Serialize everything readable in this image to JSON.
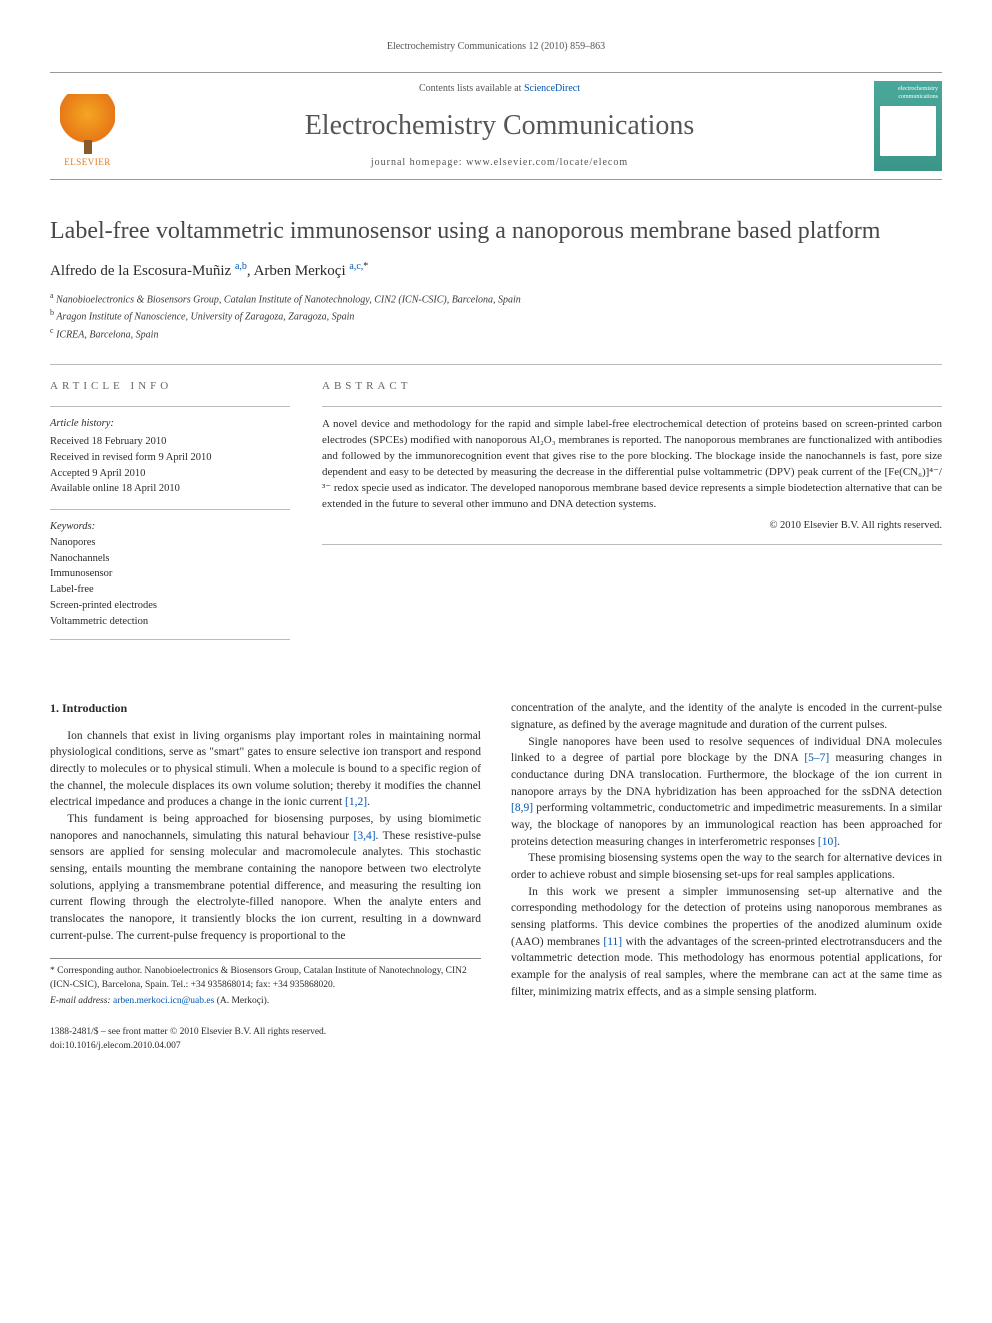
{
  "running_head": "Electrochemistry Communications 12 (2010) 859–863",
  "banner": {
    "contents_prefix": "Contents lists available at ",
    "contents_link": "ScienceDirect",
    "journal": "Electrochemistry Communications",
    "homepage_label": "journal homepage: ",
    "homepage": "www.elsevier.com/locate/elecom",
    "publisher": "ELSEVIER",
    "cover_label": "electrochemistry communications"
  },
  "title": "Label-free voltammetric immunosensor using a nanoporous membrane based platform",
  "authors": [
    {
      "name": "Alfredo de la Escosura-Muñiz",
      "marks": "a,b"
    },
    {
      "name": "Arben Merkoçi",
      "marks": "a,c,",
      "corr": true
    }
  ],
  "affiliations": [
    {
      "mark": "a",
      "text": "Nanobioelectronics & Biosensors Group, Catalan Institute of Nanotechnology, CIN2 (ICN-CSIC), Barcelona, Spain"
    },
    {
      "mark": "b",
      "text": "Aragon Institute of Nanoscience, University of Zaragoza, Zaragoza, Spain"
    },
    {
      "mark": "c",
      "text": "ICREA, Barcelona, Spain"
    }
  ],
  "info": {
    "label": "article info",
    "history_head": "Article history:",
    "history": [
      "Received 18 February 2010",
      "Received in revised form 9 April 2010",
      "Accepted 9 April 2010",
      "Available online 18 April 2010"
    ],
    "keywords_head": "Keywords:",
    "keywords": [
      "Nanopores",
      "Nanochannels",
      "Immunosensor",
      "Label-free",
      "Screen-printed electrodes",
      "Voltammetric detection"
    ]
  },
  "abstract": {
    "label": "abstract",
    "text": "A novel device and methodology for the rapid and simple label-free electrochemical detection of proteins based on screen-printed carbon electrodes (SPCEs) modified with nanoporous Al₂O₃ membranes is reported. The nanoporous membranes are functionalized with antibodies and followed by the immunorecognition event that gives rise to the pore blocking. The blockage inside the nanochannels is fast, pore size dependent and easy to be detected by measuring the decrease in the differential pulse voltammetric (DPV) peak current of the [Fe(CN₆)]⁴⁻/³⁻ redox specie used as indicator. The developed nanoporous membrane based device represents a simple biodetection alternative that can be extended in the future to several other immuno and DNA detection systems.",
    "copyright": "© 2010 Elsevier B.V. All rights reserved."
  },
  "body": {
    "heading": "1. Introduction",
    "p1": "Ion channels that exist in living organisms play important roles in maintaining normal physiological conditions, serve as \"smart\" gates to ensure selective ion transport and respond directly to molecules or to physical stimuli. When a molecule is bound to a specific region of the channel, the molecule displaces its own volume solution; thereby it modifies the channel electrical impedance and produces a change in the ionic current ",
    "ref1": "[1,2]",
    "p2a": "This fundament is being approached for biosensing purposes, by using biomimetic nanopores and nanochannels, simulating this natural behaviour ",
    "ref2": "[3,4]",
    "p2b": ". These resistive-pulse sensors are applied for sensing molecular and macromolecule analytes. This stochastic sensing, entails mounting the membrane containing the nanopore between two electrolyte solutions, applying a transmembrane potential difference, and measuring the resulting ion current flowing through the electrolyte-filled nanopore. When the analyte enters and translocates the nanopore, it transiently blocks the ion current, resulting in a downward current-pulse. The current-pulse frequency is proportional to the",
    "p3": "concentration of the analyte, and the identity of the analyte is encoded in the current-pulse signature, as defined by the average magnitude and duration of the current pulses.",
    "p4a": "Single nanopores have been used to resolve sequences of individual DNA molecules linked to a degree of partial pore blockage by the DNA ",
    "ref3": "[5–7]",
    "p4b": " measuring changes in conductance during DNA translocation. Furthermore, the blockage of the ion current in nanopore arrays by the DNA hybridization has been approached for the ssDNA detection ",
    "ref4": "[8,9]",
    "p4c": " performing voltammetric, conductometric and impedimetric measurements. In a similar way, the blockage of nanopores by an immunological reaction has been approached for proteins detection measuring changes in interferometric responses ",
    "ref5": "[10]",
    "p5": "These promising biosensing systems open the way to the search for alternative devices in order to achieve robust and simple biosensing set-ups for real samples applications.",
    "p6a": "In this work we present a simpler immunosensing set-up alternative and the corresponding methodology for the detection of proteins using nanoporous membranes as sensing platforms. This device combines the properties of the anodized aluminum oxide (AAO) membranes ",
    "ref6": "[11]",
    "p6b": " with the advantages of the screen-printed electrotransducers and the voltammetric detection mode. This methodology has enormous potential applications, for example for the analysis of real samples, where the membrane can act at the same time as filter, minimizing matrix effects, and as a simple sensing platform."
  },
  "footnotes": {
    "corr": "* Corresponding author. Nanobioelectronics & Biosensors Group, Catalan Institute of Nanotechnology, CIN2 (ICN-CSIC), Barcelona, Spain. Tel.: +34 935868014; fax: +34 935868020.",
    "email_label": "E-mail address: ",
    "email": "arben.merkoci.icn@uab.es",
    "email_who": " (A. Merkoçi)."
  },
  "bottom": {
    "line1": "1388-2481/$ – see front matter © 2010 Elsevier B.V. All rights reserved.",
    "line2": "doi:10.1016/j.elecom.2010.04.007"
  },
  "colors": {
    "link": "#0056b3",
    "logo": "#e67817",
    "cover": "#4aa89a",
    "rule": "#bbbbbb",
    "text": "#2a2a2a"
  },
  "typography": {
    "title_pt": 24,
    "journal_pt": 28,
    "body_pt": 11.5,
    "abstract_pt": 11,
    "small_pt": 10
  }
}
